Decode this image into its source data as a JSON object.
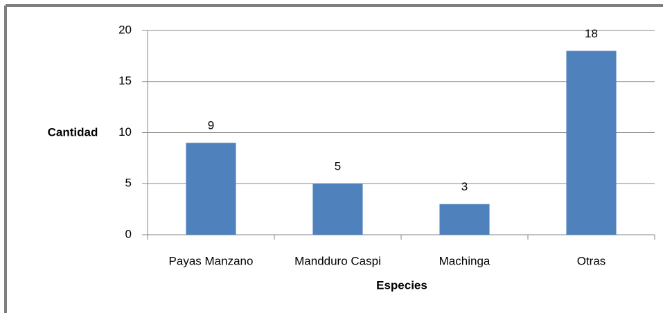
{
  "chart_data": {
    "type": "bar",
    "x_label": "Especies",
    "y_label": "Cantidad",
    "categories": [
      "Payas Manzano",
      "Mandduro Caspi",
      "Machinga",
      "Otras"
    ],
    "values": [
      9,
      5,
      3,
      18
    ],
    "color": "#4f81bd",
    "ylim": [
      0,
      20
    ],
    "yticks": [
      0,
      5,
      10,
      15,
      20
    ],
    "grid": true,
    "data_labels": true
  }
}
